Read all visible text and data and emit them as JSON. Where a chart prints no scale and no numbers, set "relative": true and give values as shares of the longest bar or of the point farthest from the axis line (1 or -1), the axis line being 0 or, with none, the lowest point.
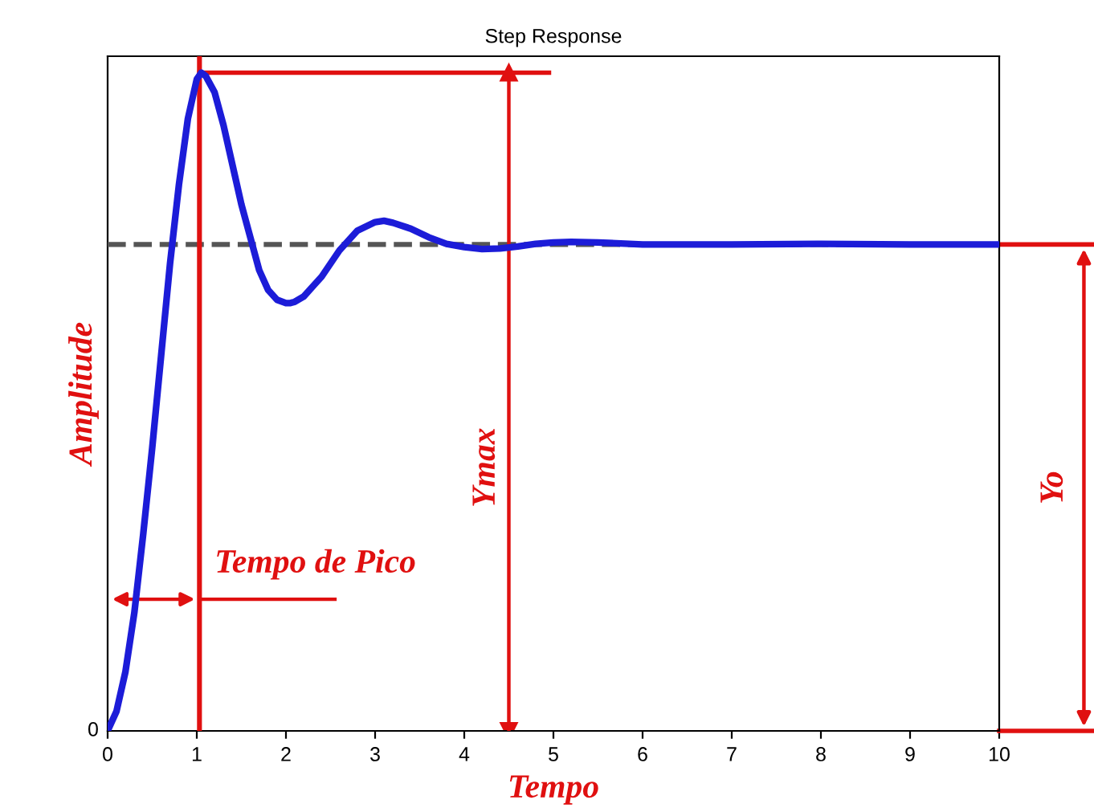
{
  "chart_data": {
    "type": "line",
    "title": "Step Response",
    "xlabel": "Tempo",
    "ylabel": "Amplitude",
    "relative": true,
    "x": [
      0,
      0.1,
      0.2,
      0.3,
      0.4,
      0.5,
      0.6,
      0.7,
      0.8,
      0.9,
      1.0,
      1.05,
      1.1,
      1.2,
      1.3,
      1.4,
      1.5,
      1.6,
      1.7,
      1.8,
      1.9,
      2.0,
      2.05,
      2.1,
      2.2,
      2.3,
      2.4,
      2.6,
      2.8,
      3.0,
      3.1,
      3.2,
      3.4,
      3.6,
      3.8,
      4.0,
      4.2,
      4.4,
      4.6,
      4.8,
      5.0,
      5.2,
      5.5,
      6.0,
      7.0,
      8.0,
      9.0,
      10.0
    ],
    "series": [
      {
        "color": "#1c1cd8",
        "values": [
          0,
          0.03,
          0.09,
          0.18,
          0.3,
          0.43,
          0.57,
          0.71,
          0.83,
          0.93,
          0.99,
          1.0,
          0.995,
          0.97,
          0.92,
          0.86,
          0.8,
          0.75,
          0.7,
          0.67,
          0.655,
          0.65,
          0.65,
          0.652,
          0.66,
          0.675,
          0.69,
          0.73,
          0.76,
          0.773,
          0.775,
          0.772,
          0.763,
          0.75,
          0.74,
          0.735,
          0.732,
          0.733,
          0.736,
          0.74,
          0.742,
          0.743,
          0.742,
          0.739,
          0.739,
          0.74,
          0.739,
          0.739
        ]
      }
    ],
    "xlim": [
      0,
      10
    ],
    "xticks": [
      0,
      1,
      2,
      3,
      4,
      5,
      6,
      7,
      8,
      9,
      10
    ],
    "ref_lines": [
      {
        "axis": "y",
        "value": 0.739,
        "color": "#555555",
        "line_style": "dashed"
      },
      {
        "axis": "x",
        "value": 1.03,
        "color": "#e01010",
        "line_style": "solid"
      },
      {
        "axis": "x",
        "value": 4.5,
        "label": "Ymax",
        "color": "#e01010",
        "line_style": "solid"
      }
    ],
    "annotations": [
      "Tempo de Pico",
      "Yo",
      "0"
    ]
  }
}
